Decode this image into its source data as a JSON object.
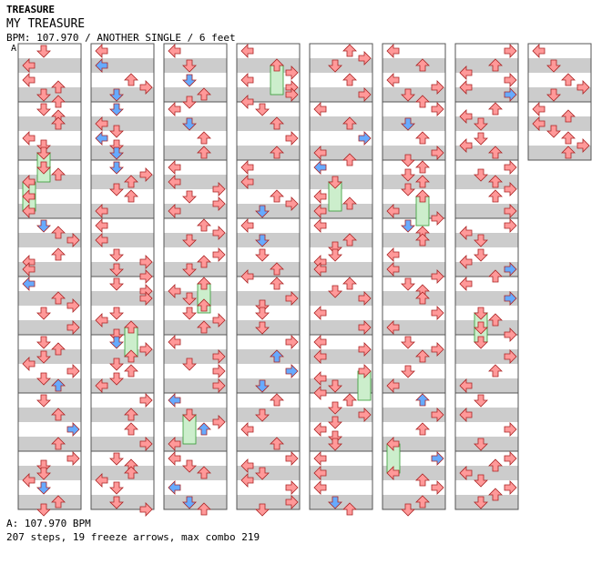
{
  "header": {
    "artist": "TREASURE",
    "title": "MY TREASURE",
    "info": "BPM: 107.970 / ANOTHER SINGLE / 6 feet"
  },
  "marker": "A",
  "footer": {
    "bpm_line": "A: 107.970 BPM",
    "stats_line": "207 steps, 19 freeze arrows, max combo 219"
  },
  "chart_data": {
    "type": "step-chart",
    "columns": 8,
    "measures_per_column": 8,
    "bpm": 107.97,
    "steps": 207,
    "freeze_arrows": 19,
    "max_combo": 219,
    "lanes": [
      "left",
      "down",
      "up",
      "right"
    ],
    "colors": {
      "quarter": "#ff9999",
      "eighth": "#66aaff",
      "sixteenth": "#33cc33",
      "freeze": "#cceecc"
    }
  }
}
